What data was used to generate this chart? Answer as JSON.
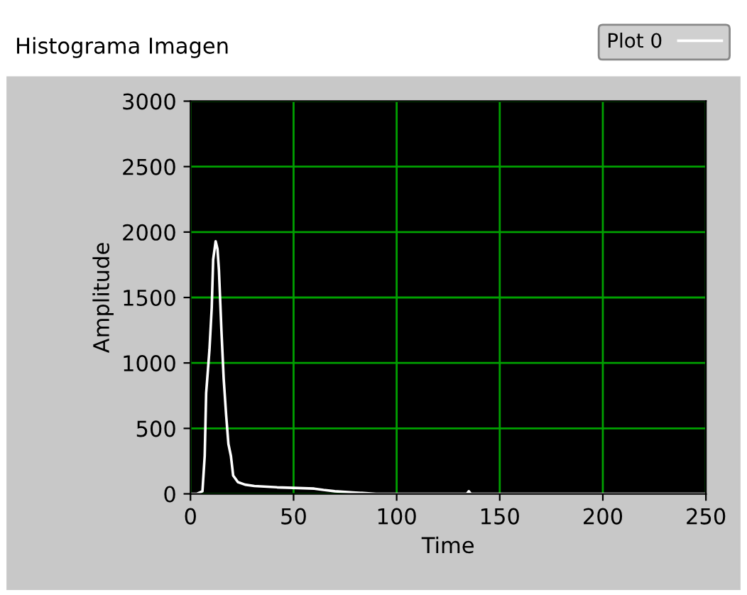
{
  "chart_data": {
    "type": "line",
    "title": "Histograma Imagen",
    "xlabel": "Time",
    "ylabel": "Amplitude",
    "xlim": [
      0,
      250
    ],
    "ylim": [
      0,
      3000
    ],
    "xticks": [
      0,
      50,
      100,
      150,
      200,
      250
    ],
    "yticks": [
      0,
      500,
      1000,
      1500,
      2000,
      2500,
      3000
    ],
    "grid": true,
    "legend": "top right",
    "series": [
      {
        "name": "Plot 0",
        "color": "#ffffff",
        "x": [
          0,
          3,
          5.8,
          6.9,
          7.6,
          9.2,
          10.3,
          11,
          12.2,
          13.1,
          13.8,
          15,
          16.1,
          17.3,
          18.4,
          19.6,
          20.7,
          23,
          26.5,
          31,
          42,
          60,
          64.5,
          70,
          80,
          90,
          100,
          120,
          134,
          135,
          136,
          150,
          200,
          250
        ],
        "values": [
          0,
          0,
          20,
          290,
          770,
          1100,
          1420,
          1790,
          1930,
          1870,
          1710,
          1250,
          880,
          600,
          380,
          290,
          140,
          90,
          70,
          60,
          50,
          40,
          30,
          20,
          10,
          0,
          0,
          0,
          0,
          20,
          0,
          0,
          0,
          0
        ]
      }
    ]
  }
}
